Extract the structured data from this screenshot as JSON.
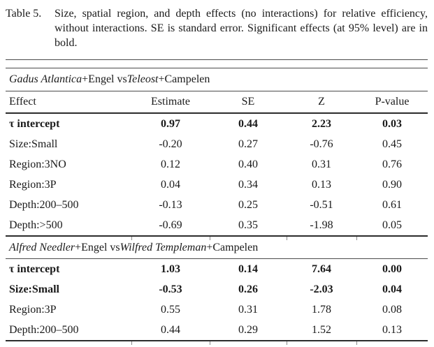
{
  "caption": {
    "label": "Table 5.",
    "text": "Size, spatial region, and depth effects (no interactions) for relative efficiency, without interactions. SE is standard error. Significant effects (at 95% level) are in bold."
  },
  "table": {
    "columns": [
      "Effect",
      "Estimate",
      "SE",
      "Z",
      "P-value"
    ],
    "sections": [
      {
        "title": [
          {
            "text": "Gadus Atlantica",
            "italic": true
          },
          {
            "text": "+Engel vs ",
            "italic": false
          },
          {
            "text": "Teleost",
            "italic": true
          },
          {
            "text": "+Campelen",
            "italic": false
          }
        ],
        "rows": [
          {
            "effect": "τ intercept",
            "estimate": "0.97",
            "se": "0.44",
            "z": "2.23",
            "p": "0.03",
            "bold": true
          },
          {
            "effect": "Size:Small",
            "estimate": "-0.20",
            "se": "0.27",
            "z": "-0.76",
            "p": "0.45",
            "bold": false
          },
          {
            "effect": "Region:3NO",
            "estimate": "0.12",
            "se": "0.40",
            "z": "0.31",
            "p": "0.76",
            "bold": false
          },
          {
            "effect": "Region:3P",
            "estimate": "0.04",
            "se": "0.34",
            "z": "0.13",
            "p": "0.90",
            "bold": false
          },
          {
            "effect": "Depth:200–500",
            "estimate": "-0.13",
            "se": "0.25",
            "z": "-0.51",
            "p": "0.61",
            "bold": false
          },
          {
            "effect": "Depth:>500",
            "estimate": "-0.69",
            "se": "0.35",
            "z": "-1.98",
            "p": "0.05",
            "bold": false
          }
        ]
      },
      {
        "title": [
          {
            "text": "Alfred Needler",
            "italic": true
          },
          {
            "text": "+Engel vs ",
            "italic": false
          },
          {
            "text": "Wilfred Templeman",
            "italic": true
          },
          {
            "text": "+Campelen",
            "italic": false
          }
        ],
        "rows": [
          {
            "effect": "τ intercept",
            "estimate": "1.03",
            "se": "0.14",
            "z": "7.64",
            "p": "0.00",
            "bold": true
          },
          {
            "effect": "Size:Small",
            "estimate": "-0.53",
            "se": "0.26",
            "z": "-2.03",
            "p": "0.04",
            "bold": true
          },
          {
            "effect": "Region:3P",
            "estimate": "0.55",
            "se": "0.31",
            "z": "1.78",
            "p": "0.08",
            "bold": false
          },
          {
            "effect": "Depth:200–500",
            "estimate": "0.44",
            "se": "0.29",
            "z": "1.52",
            "p": "0.13",
            "bold": false
          }
        ]
      }
    ]
  },
  "colors": {
    "background": "#ffffff",
    "text": "#1a1a1a",
    "rule_thin": "#4a4a4a",
    "rule_thick": "#2b2b2b"
  }
}
